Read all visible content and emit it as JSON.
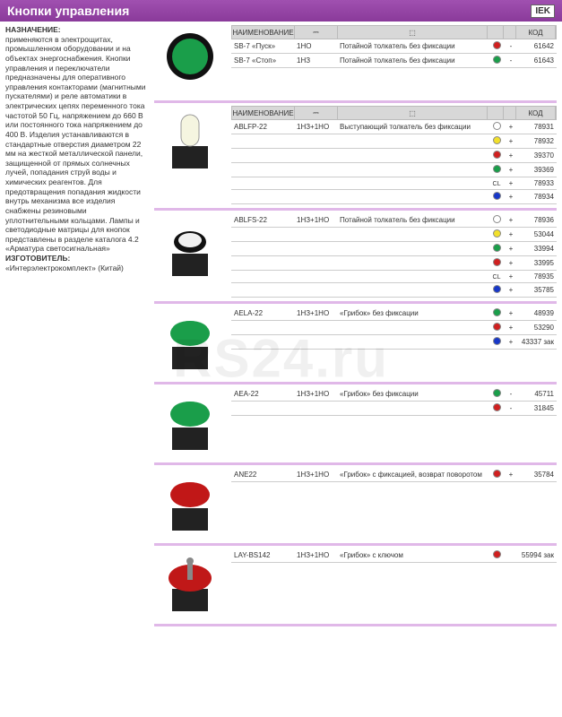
{
  "header": {
    "title": "Кнопки управления",
    "logo": "IEK"
  },
  "watermark": "RS24.ru",
  "sidebar": {
    "heading": "НАЗНАЧЕНИЕ:",
    "body": "применяются в электрощитах, промышленном оборудовании и на объектах энергоснабжения. Кнопки управления и переключатели предназначены для оперативного управления контакторами (магнитными пускателями) и реле автоматики в электрических цепях переменного тока частотой 50 Гц, напряжением до 660 В или постоянного тока напряжением до 400 В. Изделия устанавливаются в стандартные отверстия диаметром 22 мм на жесткой металлической панели, защищенной от прямых солнечных лучей, попадания струй воды и химических реагентов. Для предотвращения попадания жидкости внутрь механизма все изделия снабжены резиновыми уплотнительными кольцами. Лампы и светодиодные матрицы для кнопок представлены в разделе каталога 4.2 «Арматура светосигнальная»",
    "maker_label": "ИЗГОТОВИТЕЛЬ:",
    "maker": "«Интерэлектрокомплект» (Китай)"
  },
  "columns": {
    "name": "НАИМЕНОВАНИЕ",
    "sym": "⎓",
    "desc": "⬚",
    "color": "",
    "plus": "",
    "code": "КОД"
  },
  "sections": [
    {
      "img": {
        "shape": "flush-round",
        "color": "#1a9e4a"
      },
      "rows": [
        {
          "name": "SB-7 «Пуск»",
          "sym": "1НО",
          "desc": "Потайной толкатель без фиксации",
          "col": "#d02020",
          "plus": "-",
          "code": "61642"
        },
        {
          "name": "SB-7 «Стоп»",
          "sym": "1НЗ",
          "desc": "Потайной толкатель без фиксации",
          "col": "#1a9e4a",
          "plus": "-",
          "code": "61643"
        }
      ]
    },
    {
      "img": {
        "shape": "tall-button",
        "color": "#f5f5e0"
      },
      "rows": [
        {
          "name": "ABLFP-22",
          "sym": "1НЗ+1НО",
          "desc": "Выступающий толкатель без фиксации",
          "col": "#ffffff",
          "plus": "+",
          "code": "78931"
        },
        {
          "name": "",
          "sym": "",
          "desc": "",
          "col": "#f2e02a",
          "plus": "+",
          "code": "78932"
        },
        {
          "name": "",
          "sym": "",
          "desc": "",
          "col": "#d02020",
          "plus": "+",
          "code": "39370"
        },
        {
          "name": "",
          "sym": "",
          "desc": "",
          "col": "#1a9e4a",
          "plus": "+",
          "code": "39369"
        },
        {
          "name": "",
          "sym": "",
          "desc": "",
          "col": "CL",
          "plus": "+",
          "code": "78933"
        },
        {
          "name": "",
          "sym": "",
          "desc": "",
          "col": "#1838c8",
          "plus": "+",
          "code": "78934"
        }
      ]
    },
    {
      "img": {
        "shape": "flush-button",
        "color": "#f0f0f0"
      },
      "rows": [
        {
          "name": "ABLFS-22",
          "sym": "1НЗ+1НО",
          "desc": "Потайной толкатель без фиксации",
          "col": "#ffffff",
          "plus": "+",
          "code": "78936"
        },
        {
          "name": "",
          "sym": "",
          "desc": "",
          "col": "#f2e02a",
          "plus": "+",
          "code": "53044"
        },
        {
          "name": "",
          "sym": "",
          "desc": "",
          "col": "#1a9e4a",
          "plus": "+",
          "code": "33994"
        },
        {
          "name": "",
          "sym": "",
          "desc": "",
          "col": "#d02020",
          "plus": "+",
          "code": "33995"
        },
        {
          "name": "",
          "sym": "",
          "desc": "",
          "col": "CL",
          "plus": "+",
          "code": "78935"
        },
        {
          "name": "",
          "sym": "",
          "desc": "",
          "col": "#1838c8",
          "plus": "+",
          "code": "35785"
        }
      ]
    },
    {
      "img": {
        "shape": "mushroom",
        "color": "#1a9e4a"
      },
      "rows": [
        {
          "name": "AELA-22",
          "sym": "1НЗ+1НО",
          "desc": "«Грибок» без фиксации",
          "col": "#1a9e4a",
          "plus": "+",
          "code": "48939"
        },
        {
          "name": "",
          "sym": "",
          "desc": "",
          "col": "#d02020",
          "plus": "+",
          "code": "53290"
        },
        {
          "name": "",
          "sym": "",
          "desc": "",
          "col": "#1838c8",
          "plus": "+",
          "code": "43337 зак"
        }
      ]
    },
    {
      "img": {
        "shape": "mushroom",
        "color": "#1a9e4a"
      },
      "rows": [
        {
          "name": "AEA-22",
          "sym": "1НЗ+1НО",
          "desc": "«Грибок» без фиксации",
          "col": "#1a9e4a",
          "plus": "-",
          "code": "45711"
        },
        {
          "name": "",
          "sym": "",
          "desc": "",
          "col": "#d02020",
          "plus": "-",
          "code": "31845"
        }
      ]
    },
    {
      "img": {
        "shape": "mushroom",
        "color": "#c01818"
      },
      "rows": [
        {
          "name": "ANE22",
          "sym": "1НЗ+1НО",
          "desc": "«Грибок» с фиксацией, возврат поворотом",
          "col": "#d02020",
          "plus": "+",
          "code": "35784"
        }
      ]
    },
    {
      "img": {
        "shape": "mushroom-key",
        "color": "#c01818"
      },
      "rows": [
        {
          "name": "LAY-BS142",
          "sym": "1НЗ+1НО",
          "desc": "«Грибок» с ключом",
          "col": "#d02020",
          "plus": "",
          "code": "55994 зак"
        }
      ]
    }
  ]
}
